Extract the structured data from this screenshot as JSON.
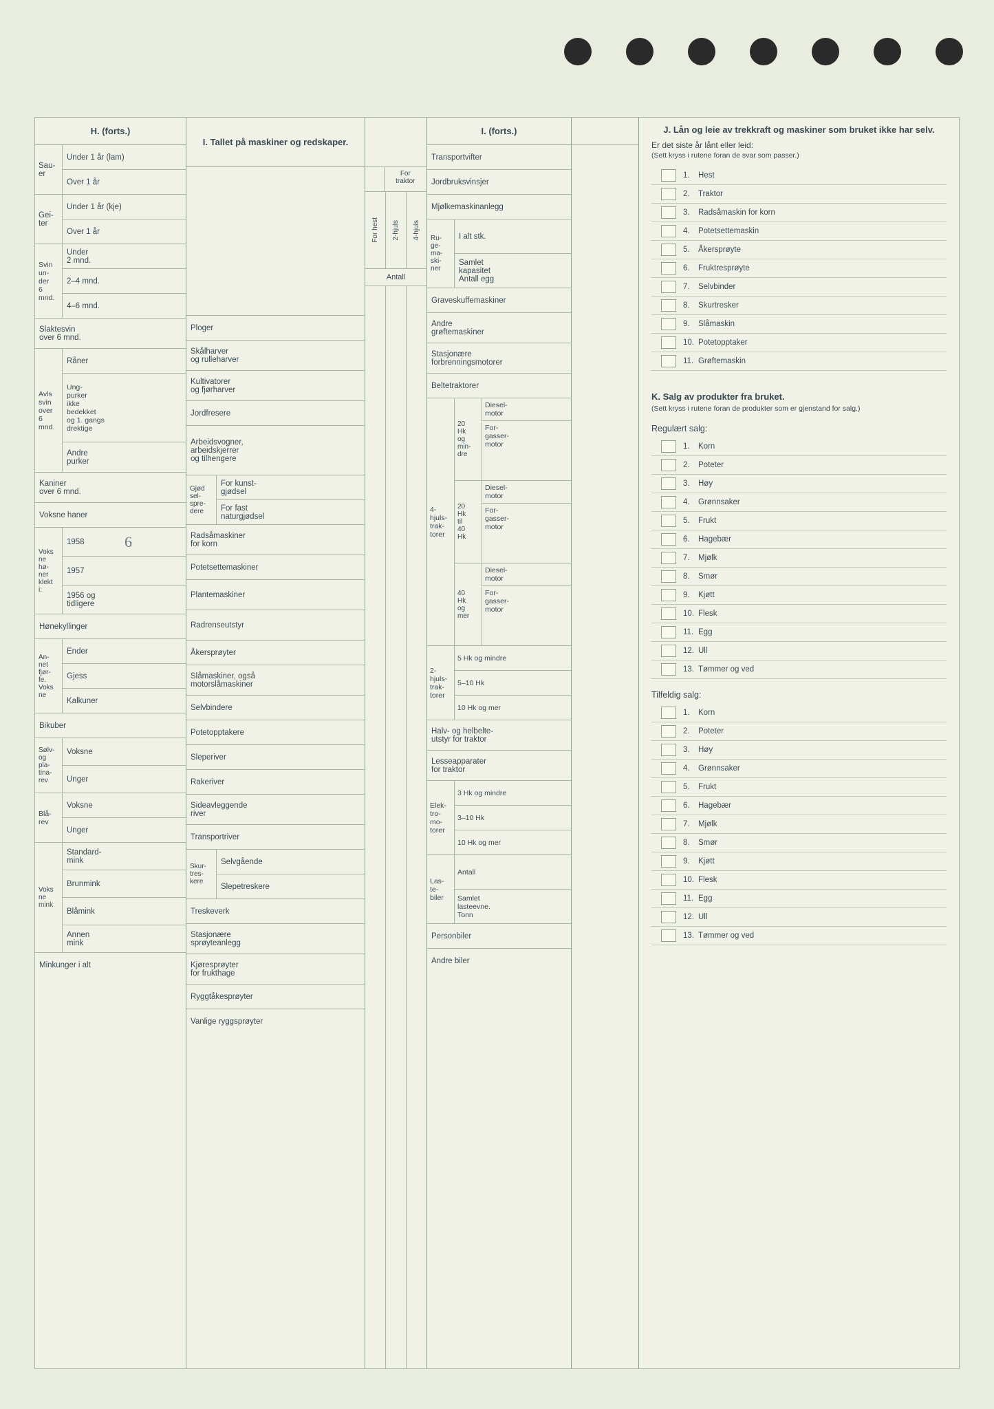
{
  "headers": {
    "H": "H. (forts.)",
    "I_title": "I. Tallet på maskiner og redskaper.",
    "I_forts": "I. (forts.)",
    "J_title": "J. Lån og leie av trekkraft og maskiner som bruket ikke har selv.",
    "K_title": "K. Salg av produkter fra bruket."
  },
  "colH": {
    "sauer": "Sau-\ner",
    "sau_u1": "Under 1 år (lam)",
    "sau_o1": "Over 1 år",
    "geiter": "Gei-\nter",
    "gei_u1": "Under 1 år (kje)",
    "gei_o1": "Over 1 år",
    "svin6": "Svin\nun-\nder\n6\nmnd.",
    "sv_u2": "Under\n2 mnd.",
    "sv_24": "2–4 mnd.",
    "sv_46": "4–6 mnd.",
    "slaktesvin": "Slaktesvin\nover 6 mnd.",
    "avlssvin": "Avls\nsvin\nover\n6\nmnd.",
    "raner": "Råner",
    "ungpurker": "Ung-\npurker\nikke\nbedekket\nog 1. gangs\ndrektige",
    "andre_purker": "Andre\npurker",
    "kaniner": "Kaniner\nover 6 mnd.",
    "voksne_haner": "Voksne haner",
    "voksne_honer": "Voks\nne\nhø-\nner\nklekt\ni:",
    "y1958": "1958",
    "y1957": "1957",
    "y1956": "1956 og\ntidligere",
    "honekyllinger": "Hønekyllinger",
    "annet": "An-\nnet\nfjør-\nfe.\nVoks\nne",
    "ender": "Ender",
    "gjess": "Gjess",
    "kalkuner": "Kalkuner",
    "bikuber": "Bikuber",
    "solv": "Sølv-\nog\npla-\ntina-\nrev",
    "voksne": "Voksne",
    "unger": "Unger",
    "blarev": "Blå-\nrev",
    "voksne_mink": "Voks\nne\nmink",
    "standardmink": "Standard-\nmink",
    "brunmink": "Brunmink",
    "blamink": "Blåmink",
    "annen_mink": "Annen\nmink",
    "minkunger": "Minkunger i alt"
  },
  "colI1": {
    "for_traktor": "For\ntraktor",
    "for_hest": "For hest",
    "hjuls2": "2-hjuls",
    "hjuls4": "4-hjuls",
    "antall": "Antall",
    "ploger": "Ploger",
    "skalharver": "Skålharver\nog rulleharver",
    "kultivatorer": "Kultivatorer\nog fjørharver",
    "jordfresere": "Jordfresere",
    "arbeidsvogner": "Arbeidsvogner,\narbeidskjerrer\nog tilhengere",
    "gjodsel": "Gjød\nsel-\nspre-\ndere",
    "kunstgjodsel": "For kunst-\ngjødsel",
    "naturgjodsel": "For fast\nnaturgjødsel",
    "radsamaskiner": "Radsåmaskiner\nfor korn",
    "potetsette": "Potetsettemaskiner",
    "plantemaskiner": "Plantemaskiner",
    "radrenseutstyr": "Radrenseutstyr",
    "akersproyter": "Åkersprøyter",
    "slamaskiner": "Slåmaskiner, også\nmotorslåmaskiner",
    "selvbindere": "Selvbindere",
    "potetopptakere": "Potetopptakere",
    "sleperiver": "Sleperiver",
    "rakeriver": "Rakeriver",
    "sideavleggende": "Sideavleggende\nriver",
    "transportriver": "Transportriver",
    "skurtreskere": "Skur-\ntres-\nkere",
    "selvgaende": "Selvgående",
    "slepetreskere": "Slepetreskere",
    "treskeverk": "Treskeverk",
    "stasjonaere_sproyte": "Stasjonære\nsprøyteanlegg",
    "kjoresproyter": "Kjøresprøyter\nfor frukthage",
    "ryggtake": "Ryggtåkesprøyter",
    "vanlige_rygg": "Vanlige ryggsprøyter"
  },
  "colI2": {
    "transportvifter": "Transportvifter",
    "jordbruksvinsjer": "Jordbruksvinsjer",
    "mjolke": "Mjølkemaskinanlegg",
    "rugema": "Ru-\nge-\nma-\nski-\nner",
    "ialt": "I alt stk.",
    "samlet": "Samlet\nkapasitet\nAntall egg",
    "graveskuffe": "Graveskuffemaskiner",
    "andre_grofte": "Andre\ngrøftemaskiner",
    "stasjonaere_forbr": "Stasjonære\nforbrenningsmotorer",
    "beltetraktorer": "Beltetraktorer",
    "hjuls4trak": "4-\nhjuls-\ntrak-\ntorer",
    "hk20min": "20\nHk\nog\nmin-\ndre",
    "hk20_40": "20\nHk\ntil\n40\nHk",
    "hk40mer": "40\nHk\nog\nmer",
    "dieselmotor": "Diesel-\nmotor",
    "forgasser": "For-\ngasser-\nmotor",
    "hjuls2trak": "2-\nhjuls-\ntrak-\ntorer",
    "hk5min": "5 Hk og mindre",
    "hk5_10": "5–10 Hk",
    "hk10mer": "10 Hk og mer",
    "halvbelte": "Halv- og helbelte-\nutstyr for traktor",
    "lesseapp": "Lesseapparater\nfor traktor",
    "elektro": "Elek-\ntro-\nmo-\ntorer",
    "hk3min": "3 Hk og mindre",
    "hk3_10": "3–10 Hk",
    "lastebiler": "Las-\nte-\nbiler",
    "antall_lb": "Antall",
    "samlet_laste": "Samlet\nlasteevne.\nTonn",
    "personbiler": "Personbiler",
    "andre_biler": "Andre biler"
  },
  "sectJ": {
    "intro": "Er det siste år lånt eller leid:",
    "note": "(Sett kryss i rutene foran de svar som passer.)",
    "items": [
      "Hest",
      "Traktor",
      "Radsåmaskin for korn",
      "Potetsettemaskin",
      "Åkersprøyte",
      "Fruktresprøyte",
      "Selvbinder",
      "Skurtresker",
      "Slåmaskin",
      "Potetopptaker",
      "Grøftemaskin"
    ]
  },
  "sectK": {
    "note": "(Sett kryss i rutene foran de produkter som er gjenstand for salg.)",
    "regulaert": "Regulært salg:",
    "tilfeldig": "Tilfeldig salg:",
    "items": [
      "Korn",
      "Poteter",
      "Høy",
      "Grønnsaker",
      "Frukt",
      "Hagebær",
      "Mjølk",
      "Smør",
      "Kjøtt",
      "Flesk",
      "Egg",
      "Ull",
      "Tømmer og ved"
    ]
  },
  "handwritten": {
    "y1958": "6"
  }
}
